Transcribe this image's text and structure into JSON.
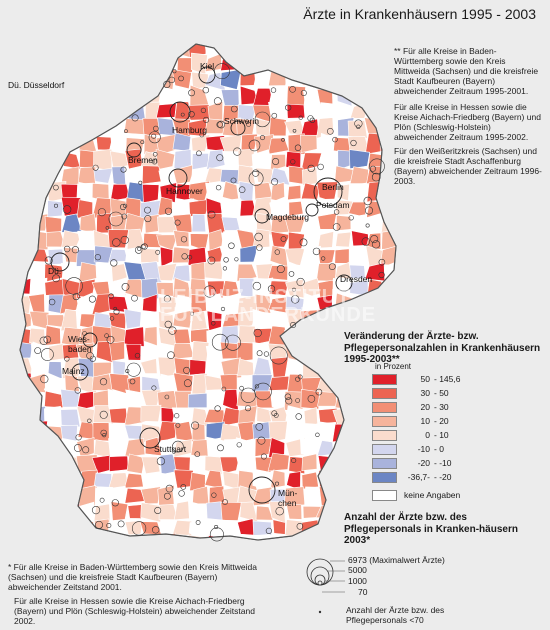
{
  "title": "Ärzte in Krankenhäusern 1995 - 2003",
  "corner_label": "Dü.  Düsseldorf",
  "cities": [
    {
      "id": "kiel",
      "name": "Kiel"
    },
    {
      "id": "hamburg",
      "name": "Hamburg"
    },
    {
      "id": "schwerin",
      "name": "Schwerin"
    },
    {
      "id": "bremen",
      "name": "Bremen"
    },
    {
      "id": "berlin",
      "name": "Berlin"
    },
    {
      "id": "potsdam",
      "name": "Potsdam"
    },
    {
      "id": "hannover",
      "name": "Hannover"
    },
    {
      "id": "magdeburg",
      "name": "Magdeburg"
    },
    {
      "id": "dusseldorf",
      "name": "Dü."
    },
    {
      "id": "dresden",
      "name": "Dresden"
    },
    {
      "id": "wiesbaden",
      "name": "Wies-\nbaden"
    },
    {
      "id": "mainz",
      "name": "Mainz"
    },
    {
      "id": "stuttgart",
      "name": "Stuttgart"
    },
    {
      "id": "munchen",
      "name": "Mün-\nchen"
    }
  ],
  "notes_top": [
    "** Für alle Kreise in Baden-Württemberg sowie den Kreis Mittweida (Sachsen) und die kreisfreie Stadt Kaufbeuren (Bayern) abweichender Zeitraum 1995-2001.",
    "Für alle Kreise in Hessen sowie die Kreise Aichach-Friedberg (Bayern) und Plön (Schleswig-Holstein) abweichender Zeitraum 1995-2002.",
    "Für den Weißeritzkreis (Sachsen) und die kreisfreie Stadt Aschaffenburg (Bayern) abweichender Zeitraum 1996-2003."
  ],
  "notes_bottom": [
    "*  Für alle Kreise in Baden-Württemberg sowie den Kreis Mittweida (Sachsen) und die kreisfreie Stadt Kaufbeuren (Bayern) abweichender Zeitstand 2001.",
    "Für alle Kreise in Hessen sowie die Kreise Aichach-Friedberg (Bayern) und Plön (Schleswig-Holstein) abweichender Zeitstand 2002."
  ],
  "watermark": "LEIBNIZ-INSTITUT\nFÜR LÄNDERKUNDE",
  "legend": {
    "title": "Veränderung der Ärzte- bzw. Pflegepersonalzahlen in Krankenhäusern 1995-2003**",
    "subtitle": "in Prozent",
    "classes": [
      {
        "from": "50",
        "to": "145,6",
        "color": "#e0202a"
      },
      {
        "from": "30",
        "to": "50",
        "color": "#ec6452"
      },
      {
        "from": "20",
        "to": "30",
        "color": "#f28f75"
      },
      {
        "from": "10",
        "to": "20",
        "color": "#f6b49c"
      },
      {
        "from": "0",
        "to": "10",
        "color": "#fadccd"
      },
      {
        "from": "-10",
        "to": "0",
        "color": "#d3d6ee"
      },
      {
        "from": "-20",
        "to": "-10",
        "color": "#a9b3dc"
      },
      {
        "from": "-36,7-",
        "to": "-20",
        "color": "#6c86c4"
      }
    ],
    "no_data": {
      "label": "keine Angaben",
      "color": "#ffffff"
    }
  },
  "size_legend": {
    "title": "Anzahl der Ärzte bzw. des Pflegepersonals in Kranken-häusern 2003*",
    "values": [
      "6973 (Maximalwert Ärzte)",
      "5000",
      "1000",
      "70"
    ],
    "dot_label": "Anzahl der Ärzte bzw. des Pflegepersonals <70"
  },
  "colors": {
    "background": "#ececec",
    "no_data": "#ffffff"
  }
}
